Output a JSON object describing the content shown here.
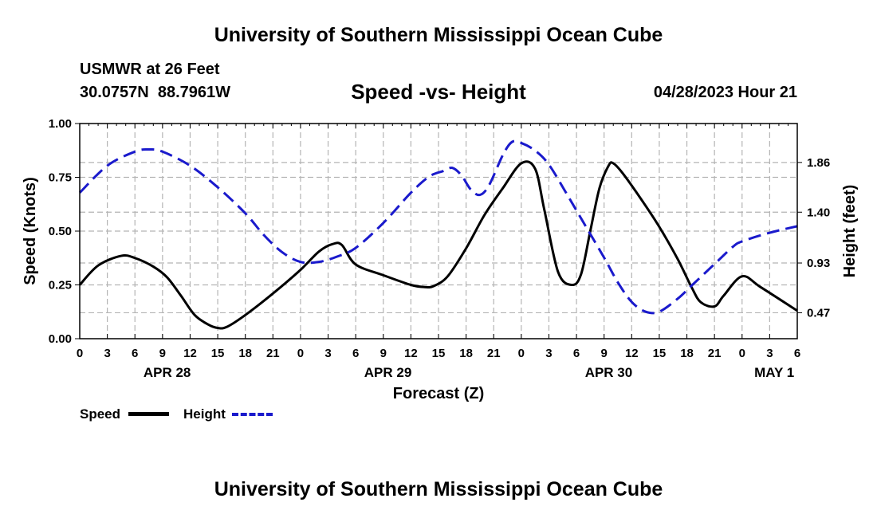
{
  "header": {
    "title": "University of Southern Mississippi Ocean Cube",
    "station": "USMWR at 26 Feet",
    "coords": "30.0757N  88.7961W",
    "subtitle": "Speed -vs- Height",
    "datetime": "04/28/2023 Hour 21"
  },
  "footer": {
    "title": "University of Southern Mississippi Ocean Cube"
  },
  "legend": {
    "speed_label": "Speed",
    "height_label": "Height"
  },
  "colors": {
    "speed": "#000000",
    "height": "#1a1acc",
    "grid": "#b4b4b4"
  },
  "chart_data": {
    "type": "line",
    "title": "Speed -vs- Height",
    "xlabel": "Forecast (Z)",
    "ylabel": "Speed (Knots)",
    "y2label": "Height (feet)",
    "x_unit": "hours since APR 28 00Z",
    "xlim": [
      0,
      78
    ],
    "ylim": [
      0,
      1.0
    ],
    "y2lim": [
      0.23,
      2.22
    ],
    "x_ticks": [
      0,
      3,
      6,
      9,
      12,
      15,
      18,
      21,
      24,
      27,
      30,
      33,
      36,
      39,
      42,
      45,
      48,
      51,
      54,
      57,
      60,
      63,
      66,
      69,
      72,
      75,
      78
    ],
    "x_tick_labels": [
      "0",
      "3",
      "6",
      "9",
      "12",
      "15",
      "18",
      "21",
      "0",
      "3",
      "6",
      "9",
      "12",
      "15",
      "18",
      "21",
      "0",
      "3",
      "6",
      "9",
      "12",
      "15",
      "18",
      "21",
      "0",
      "3",
      "6"
    ],
    "y_ticks": [
      0.0,
      0.25,
      0.5,
      0.75,
      1.0
    ],
    "y_tick_labels": [
      "0.00",
      "0.25",
      "0.50",
      "0.75",
      "1.00"
    ],
    "y2_ticks": [
      0.47,
      0.93,
      1.4,
      1.86
    ],
    "y2_tick_labels": [
      "0.47",
      "0.93",
      "1.40",
      "1.86"
    ],
    "day_labels": [
      {
        "x": 9.5,
        "label": "APR 28"
      },
      {
        "x": 33.5,
        "label": "APR 29"
      },
      {
        "x": 57.5,
        "label": "APR 30"
      },
      {
        "x": 75.5,
        "label": "MAY 1"
      }
    ],
    "series": [
      {
        "name": "Speed",
        "axis": "left",
        "style": "solid",
        "x": [
          0,
          2,
          4.5,
          6,
          8,
          9.5,
          11,
          12.5,
          14,
          15,
          16,
          18,
          21,
          24,
          26,
          27.5,
          28.5,
          30,
          33,
          36,
          37.5,
          38.5,
          40,
          42,
          44,
          46,
          48,
          49.5,
          50.5,
          52,
          53.5,
          54.5,
          55.5,
          56.5,
          57.5,
          58,
          59,
          61,
          63,
          65,
          66.5,
          67.5,
          69,
          70,
          72,
          74,
          78
        ],
        "y": [
          0.25,
          0.34,
          0.385,
          0.375,
          0.335,
          0.285,
          0.2,
          0.11,
          0.065,
          0.05,
          0.055,
          0.11,
          0.21,
          0.32,
          0.405,
          0.44,
          0.435,
          0.345,
          0.295,
          0.25,
          0.24,
          0.245,
          0.29,
          0.42,
          0.575,
          0.7,
          0.815,
          0.79,
          0.6,
          0.31,
          0.25,
          0.3,
          0.5,
          0.7,
          0.805,
          0.815,
          0.77,
          0.65,
          0.52,
          0.37,
          0.24,
          0.17,
          0.15,
          0.2,
          0.29,
          0.24,
          0.13
        ]
      },
      {
        "name": "Height",
        "axis": "right",
        "style": "dashed",
        "x": [
          0,
          3,
          6,
          7.5,
          9,
          12,
          15,
          18,
          20,
          22,
          24,
          26,
          28,
          30,
          33,
          36,
          38,
          39.5,
          40.5,
          41.5,
          42.5,
          43.5,
          44.5,
          46,
          47,
          48,
          49.5,
          51,
          53,
          55,
          57,
          58.5,
          60,
          61.5,
          63,
          65,
          66.5,
          68,
          69.5,
          71,
          72,
          75,
          78
        ],
        "y": [
          1.58,
          1.83,
          1.96,
          1.98,
          1.96,
          1.83,
          1.63,
          1.39,
          1.19,
          1.03,
          0.94,
          0.94,
          0.99,
          1.07,
          1.3,
          1.58,
          1.73,
          1.78,
          1.81,
          1.74,
          1.61,
          1.56,
          1.65,
          1.93,
          2.05,
          2.04,
          1.97,
          1.84,
          1.56,
          1.27,
          0.98,
          0.75,
          0.57,
          0.48,
          0.48,
          0.6,
          0.72,
          0.84,
          0.96,
          1.08,
          1.13,
          1.21,
          1.27
        ]
      }
    ]
  }
}
